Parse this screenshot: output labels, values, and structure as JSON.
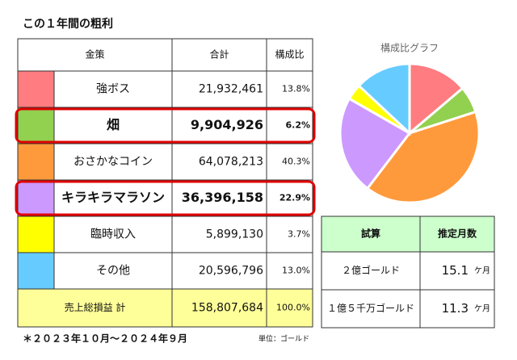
{
  "title": "この１年間の粗利",
  "table": {
    "header": [
      "金策",
      "合計",
      "構成比"
    ],
    "rows": [
      {
        "color": "#ff7c80",
        "name": "強ボス",
        "amount": "21,932,461",
        "percent": "13.8%",
        "highlight": false
      },
      {
        "color": "#92d050",
        "name": "畑",
        "amount": "9,904,926",
        "percent": "6.2%",
        "highlight": true
      },
      {
        "color": "#ff9a3c",
        "name": "おさかなコイン",
        "amount": "64,078,213",
        "percent": "40.3%",
        "highlight": false
      },
      {
        "color": "#cc99ff",
        "name": "キラキラマラソン",
        "amount": "36,396,158",
        "percent": "22.9%",
        "highlight": true
      },
      {
        "color": "#ffff00",
        "name": "臨時収入",
        "amount": "5,899,130",
        "percent": "3.7%",
        "highlight": false
      },
      {
        "color": "#66ccff",
        "name": "その他",
        "amount": "20,596,796",
        "percent": "13.0%",
        "highlight": false
      }
    ],
    "total": {
      "name": "売上総損益 計",
      "amount": "158,807,684",
      "percent": "100.0%"
    }
  },
  "period": "＊２０２３年１０月～２０２４年９月",
  "unit": "単位：ゴールド",
  "estimate": {
    "header": [
      "試算",
      "推定月数"
    ],
    "rows": [
      {
        "goal": "２億ゴールド",
        "months": "15.1",
        "unit": "ケ月"
      },
      {
        "goal": "１億５千万ゴールド",
        "months": "11.3",
        "unit": "ケ月"
      }
    ]
  },
  "chart_data": {
    "type": "pie",
    "title": "構成比グラフ",
    "values": [
      13.8,
      6.2,
      40.3,
      22.9,
      3.7,
      13.0
    ],
    "colors": [
      "#ff7c80",
      "#92d050",
      "#ff9a3c",
      "#cc99ff",
      "#ffff00",
      "#66ccff"
    ]
  }
}
